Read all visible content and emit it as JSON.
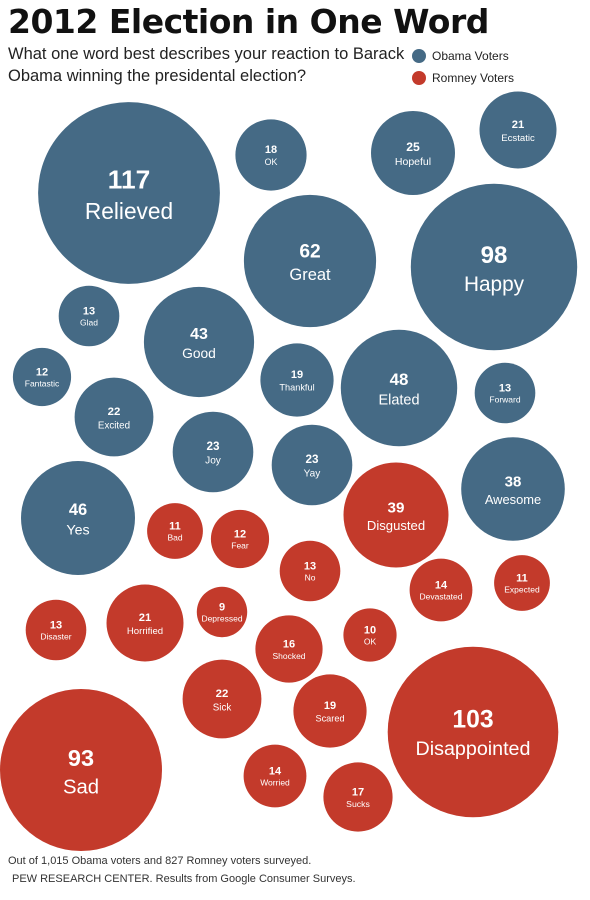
{
  "title": "2012 Election in One Word",
  "subtitle": "What one word best describes your reaction to Barack Obama winning the presidental election?",
  "legend": {
    "obama": {
      "label": "Obama Voters",
      "color": "#456a85"
    },
    "romney": {
      "label": "Romney Voters",
      "color": "#c33a2b"
    }
  },
  "footnote": {
    "line1": "Out of 1,015 Obama voters and 827 Romney voters surveyed.",
    "line2": "PEW RESEARCH CENTER. Results from Google Consumer Surveys."
  },
  "chart_data": {
    "type": "bubble",
    "title": "2012 Election in One Word",
    "series": [
      {
        "name": "Obama Voters",
        "color": "#456a85",
        "points": [
          {
            "word": "Relieved",
            "count": 117
          },
          {
            "word": "OK",
            "count": 18
          },
          {
            "word": "Hopeful",
            "count": 25
          },
          {
            "word": "Ecstatic",
            "count": 21
          },
          {
            "word": "Great",
            "count": 62
          },
          {
            "word": "Happy",
            "count": 98
          },
          {
            "word": "Glad",
            "count": 13
          },
          {
            "word": "Good",
            "count": 43
          },
          {
            "word": "Fantastic",
            "count": 12
          },
          {
            "word": "Thankful",
            "count": 19
          },
          {
            "word": "Elated",
            "count": 48
          },
          {
            "word": "Forward",
            "count": 13
          },
          {
            "word": "Excited",
            "count": 22
          },
          {
            "word": "Joy",
            "count": 23
          },
          {
            "word": "Yay",
            "count": 23
          },
          {
            "word": "Awesome",
            "count": 38
          },
          {
            "word": "Yes",
            "count": 46
          }
        ]
      },
      {
        "name": "Romney Voters",
        "color": "#c33a2b",
        "points": [
          {
            "word": "Disgusted",
            "count": 39
          },
          {
            "word": "Bad",
            "count": 11
          },
          {
            "word": "Fear",
            "count": 12
          },
          {
            "word": "No",
            "count": 13
          },
          {
            "word": "Devastated",
            "count": 14
          },
          {
            "word": "Expected",
            "count": 11
          },
          {
            "word": "Disaster",
            "count": 13
          },
          {
            "word": "Horrified",
            "count": 21
          },
          {
            "word": "Depressed",
            "count": 9
          },
          {
            "word": "Shocked",
            "count": 16
          },
          {
            "word": "OK",
            "count": 10
          },
          {
            "word": "Sick",
            "count": 22
          },
          {
            "word": "Scared",
            "count": 19
          },
          {
            "word": "Disappointed",
            "count": 103
          },
          {
            "word": "Sad",
            "count": 93
          },
          {
            "word": "Worried",
            "count": 14
          },
          {
            "word": "Sucks",
            "count": 17
          }
        ]
      }
    ]
  }
}
